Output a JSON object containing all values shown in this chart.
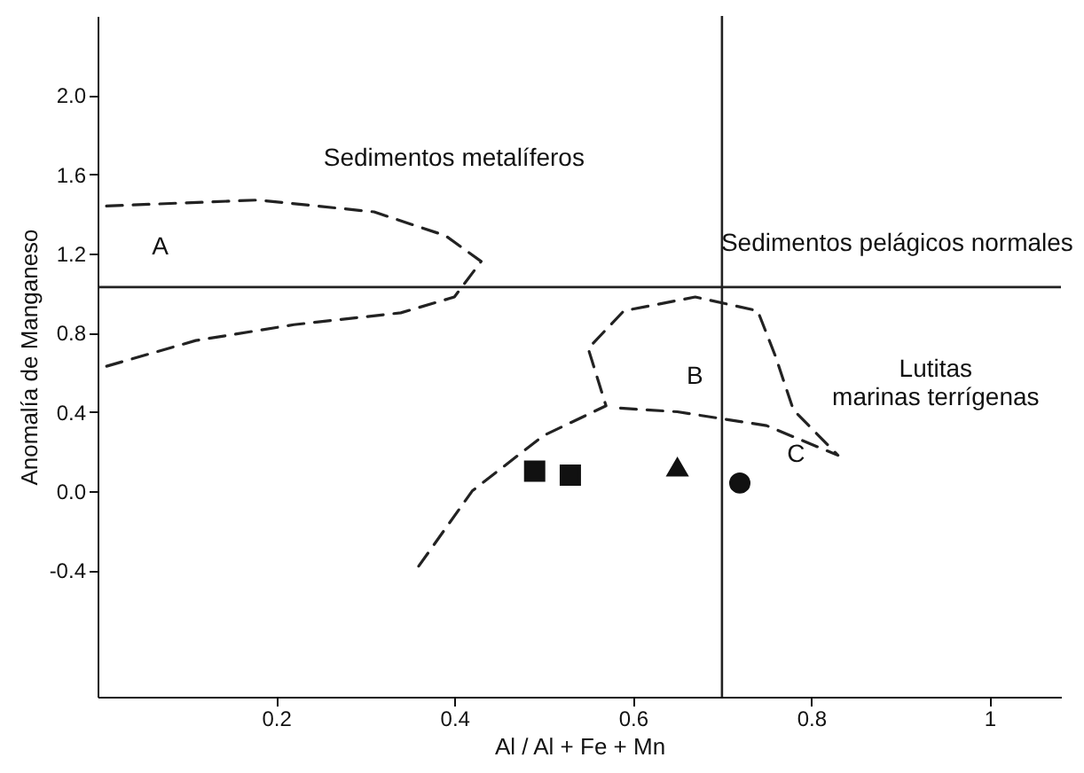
{
  "chart_data": {
    "type": "scatter",
    "xlabel": "Al / Al + Fe + Mn",
    "ylabel": "Anomalía de Manganeso",
    "xlim": [
      0,
      1.08
    ],
    "ylim": [
      -1.04,
      2.4
    ],
    "xticks": [
      0.2,
      0.4,
      0.6,
      0.8,
      1.0
    ],
    "yticks": [
      {
        "value": -0.4,
        "label": "-0.4"
      },
      {
        "value": 0,
        "label": "0.0"
      },
      0.4,
      0.8,
      {
        "value": 1.2,
        "label": "1.2"
      },
      1.6,
      {
        "value": 2,
        "label": "2.0"
      }
    ],
    "grid": false,
    "legend": false,
    "series": [
      {
        "type": "line",
        "line_style": "dashed",
        "marker": "none",
        "color": "#222222",
        "x": [
          0.01,
          0.18,
          0.31,
          0.39,
          0.43,
          0.4,
          0.34,
          0.22,
          0.11,
          0.01
        ],
        "values": [
          1.44,
          1.47,
          1.41,
          1.29,
          1.16,
          0.98,
          0.9,
          0.84,
          0.76,
          0.63
        ]
      },
      {
        "type": "line",
        "line_style": "dashed",
        "marker": "none",
        "color": "#222222",
        "x": [
          0.36,
          0.42,
          0.5,
          0.57,
          0.55,
          0.59,
          0.67,
          0.74,
          0.76,
          0.78,
          0.83,
          0.75,
          0.65,
          0.58
        ],
        "values": [
          -0.38,
          0.0,
          0.28,
          0.43,
          0.72,
          0.91,
          0.98,
          0.91,
          0.68,
          0.41,
          0.18,
          0.33,
          0.4,
          0.42
        ]
      },
      {
        "type": "scatter",
        "marker": "square",
        "color": "#111111",
        "x": [
          0.49
        ],
        "values": [
          0.1
        ]
      },
      {
        "type": "scatter",
        "marker": "square",
        "color": "#111111",
        "x": [
          0.53
        ],
        "values": [
          0.08
        ]
      },
      {
        "type": "scatter",
        "marker": "triangle",
        "color": "#111111",
        "x": [
          0.65
        ],
        "values": [
          0.12
        ]
      },
      {
        "type": "scatter",
        "marker": "circle",
        "color": "#111111",
        "x": [
          0.72
        ],
        "values": [
          0.04
        ]
      }
    ],
    "ref_lines": [
      {
        "axis": "y",
        "value": 1.03,
        "color": "#222222"
      },
      {
        "axis": "x",
        "value": 0.7,
        "color": "#222222"
      }
    ],
    "annotations": [
      "A",
      "B",
      "C",
      "Sedimentos metalíferos",
      "Sedimentos pelágicos normales",
      "Lutitas marinas terrígenas"
    ]
  }
}
